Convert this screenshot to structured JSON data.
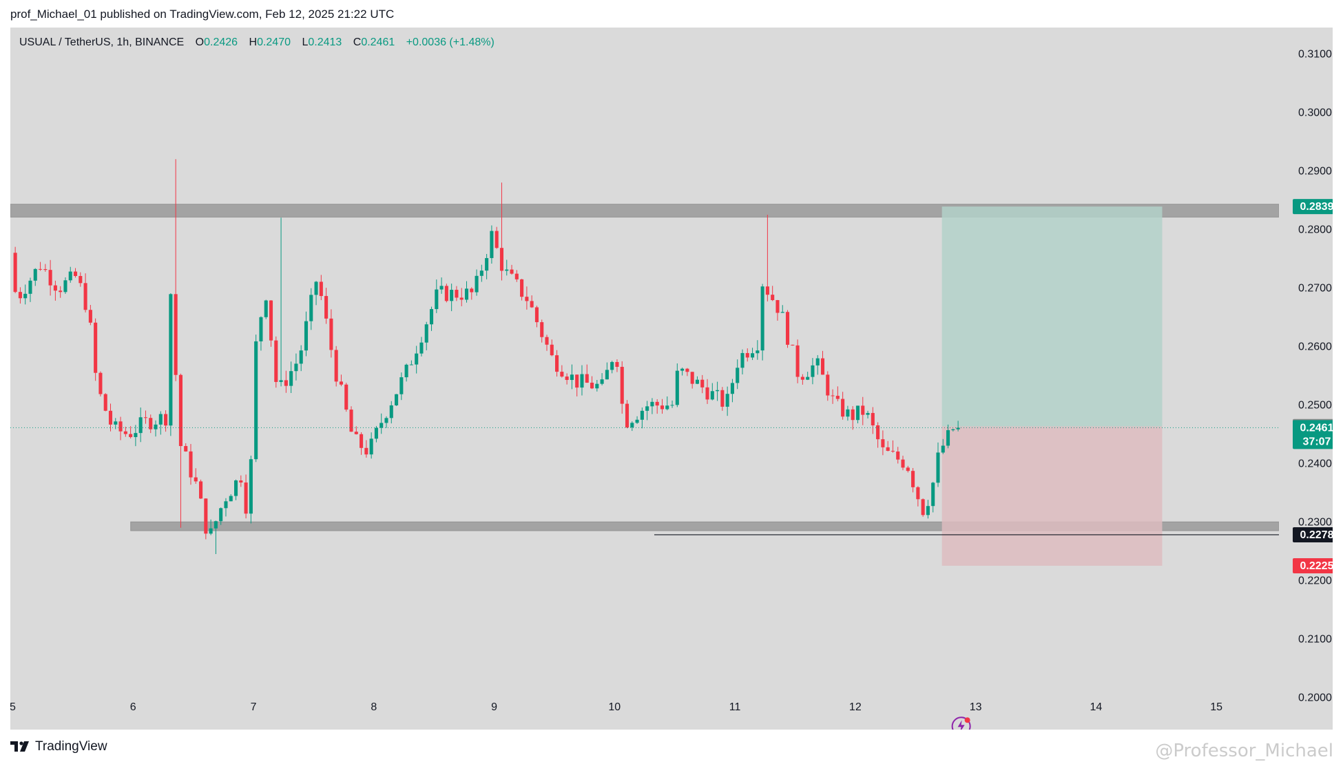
{
  "header": {
    "publish_line": "prof_Michael_01 published on TradingView.com, Feb 12, 2025 21:22 UTC"
  },
  "legend": {
    "symbol": "USUAL / TetherUS, 1h, BINANCE",
    "o_label": "O",
    "o_value": "0.2426",
    "h_label": "H",
    "h_value": "0.2470",
    "l_label": "L",
    "l_value": "0.2413",
    "c_label": "C",
    "c_value": "0.2461",
    "change": "+0.0036 (+1.48%)"
  },
  "footer": {
    "brand": "TradingView",
    "watermark": "@Professor_Michael"
  },
  "colors": {
    "up": "#089981",
    "down": "#f23645",
    "background": "#dadada",
    "zone": "#9e9e9e",
    "target_zone": "#b3d1c9",
    "stop_zone": "#ddbcbf"
  },
  "chart_data": {
    "type": "candlestick",
    "title": "USUAL / TetherUS, 1h, BINANCE",
    "x_ticks": [
      "5",
      "6",
      "7",
      "8",
      "9",
      "10",
      "11",
      "12",
      "13",
      "14",
      "15"
    ],
    "y_ticks": [
      "0.3100",
      "0.3000",
      "0.2900",
      "0.2800",
      "0.2700",
      "0.2600",
      "0.2500",
      "0.2400",
      "0.2300",
      "0.2200",
      "0.2100",
      "0.2000"
    ],
    "ylim": [
      0.1945,
      0.3145
    ],
    "xlim_days": [
      4.98,
      15.52
    ],
    "ohlc_anchors": [
      {
        "d": 5.0,
        "p": 0.276
      },
      {
        "d": 5.05,
        "p": 0.268
      },
      {
        "d": 5.25,
        "p": 0.274
      },
      {
        "d": 5.4,
        "p": 0.27
      },
      {
        "d": 5.55,
        "p": 0.272
      },
      {
        "d": 5.65,
        "p": 0.266
      },
      {
        "d": 5.72,
        "p": 0.253
      },
      {
        "d": 5.85,
        "p": 0.246
      },
      {
        "d": 5.98,
        "p": 0.245
      },
      {
        "d": 6.12,
        "p": 0.247
      },
      {
        "d": 6.3,
        "p": 0.248
      },
      {
        "d": 6.36,
        "p": 0.286
      },
      {
        "d": 6.38,
        "p": 0.245
      },
      {
        "d": 6.55,
        "p": 0.236
      },
      {
        "d": 6.65,
        "p": 0.227
      },
      {
        "d": 6.78,
        "p": 0.234
      },
      {
        "d": 6.92,
        "p": 0.238
      },
      {
        "d": 6.98,
        "p": 0.23
      },
      {
        "d": 7.04,
        "p": 0.26
      },
      {
        "d": 7.12,
        "p": 0.27
      },
      {
        "d": 7.22,
        "p": 0.252
      },
      {
        "d": 7.4,
        "p": 0.258
      },
      {
        "d": 7.55,
        "p": 0.272
      },
      {
        "d": 7.7,
        "p": 0.256
      },
      {
        "d": 7.85,
        "p": 0.244
      },
      {
        "d": 7.98,
        "p": 0.242
      },
      {
        "d": 8.1,
        "p": 0.248
      },
      {
        "d": 8.3,
        "p": 0.256
      },
      {
        "d": 8.55,
        "p": 0.269
      },
      {
        "d": 8.85,
        "p": 0.269
      },
      {
        "d": 9.0,
        "p": 0.279
      },
      {
        "d": 9.1,
        "p": 0.273
      },
      {
        "d": 9.3,
        "p": 0.268
      },
      {
        "d": 9.5,
        "p": 0.258
      },
      {
        "d": 9.7,
        "p": 0.254
      },
      {
        "d": 9.92,
        "p": 0.253
      },
      {
        "d": 10.03,
        "p": 0.26
      },
      {
        "d": 10.1,
        "p": 0.247
      },
      {
        "d": 10.3,
        "p": 0.25
      },
      {
        "d": 10.5,
        "p": 0.25
      },
      {
        "d": 10.55,
        "p": 0.256
      },
      {
        "d": 10.75,
        "p": 0.253
      },
      {
        "d": 10.95,
        "p": 0.25
      },
      {
        "d": 11.05,
        "p": 0.258
      },
      {
        "d": 11.22,
        "p": 0.261
      },
      {
        "d": 11.25,
        "p": 0.271
      },
      {
        "d": 11.4,
        "p": 0.266
      },
      {
        "d": 11.55,
        "p": 0.255
      },
      {
        "d": 11.7,
        "p": 0.257
      },
      {
        "d": 11.85,
        "p": 0.25
      },
      {
        "d": 11.98,
        "p": 0.248
      },
      {
        "d": 12.1,
        "p": 0.249
      },
      {
        "d": 12.25,
        "p": 0.242
      },
      {
        "d": 12.45,
        "p": 0.24
      },
      {
        "d": 12.58,
        "p": 0.232
      },
      {
        "d": 12.65,
        "p": 0.235
      },
      {
        "d": 12.72,
        "p": 0.242
      },
      {
        "d": 12.84,
        "p": 0.2461
      }
    ],
    "zones": {
      "resistance": [
        0.2821,
        0.2843
      ],
      "support": [
        0.2285,
        0.23
      ]
    },
    "position": {
      "entry": 0.2463,
      "target": 0.2839,
      "stop": 0.2225,
      "start_day": 12.72,
      "end_day": 14.55
    },
    "horizontal_line": {
      "price": 0.2278,
      "start_day": 10.33
    },
    "price_tags": [
      {
        "value": "0.2839",
        "kind": "target"
      },
      {
        "value": "0.2463",
        "kind": "entry"
      },
      {
        "value": "0.2461",
        "kind": "last",
        "countdown": "37:07"
      },
      {
        "value": "0.2278",
        "kind": "line"
      },
      {
        "value": "0.2225",
        "kind": "stop"
      }
    ]
  }
}
